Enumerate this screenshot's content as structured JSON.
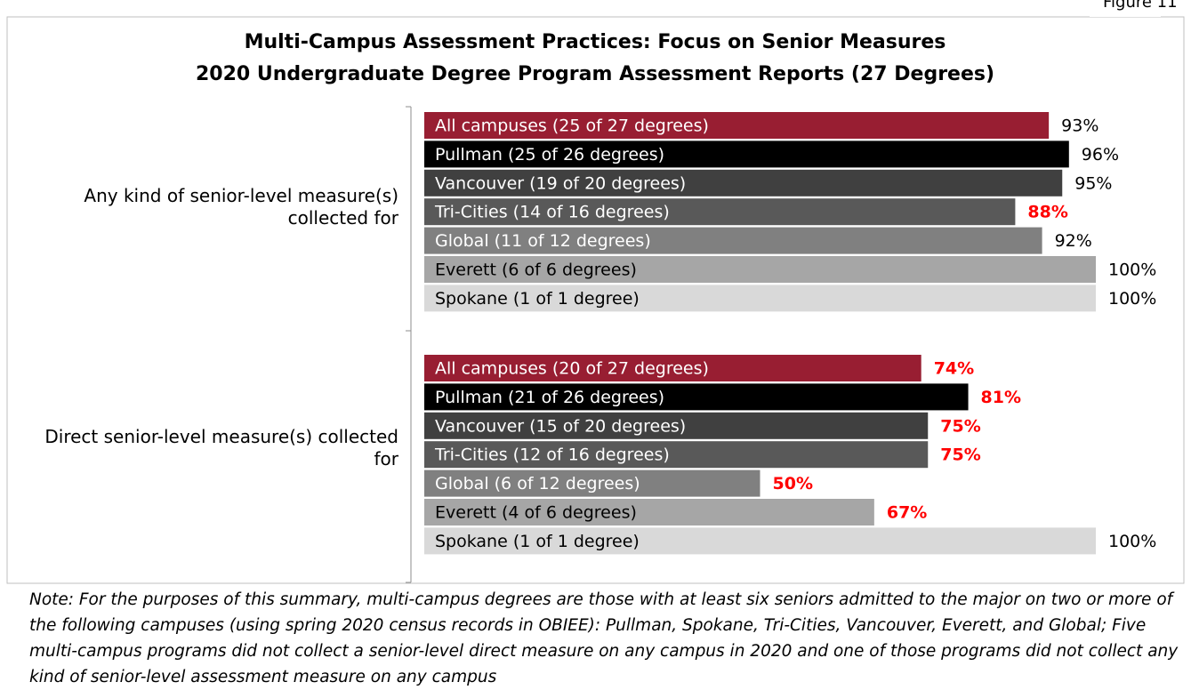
{
  "figure_label": "Figure 11",
  "chart_data": {
    "type": "bar",
    "orientation": "horizontal",
    "title": "Multi-Campus Assessment Practices: Focus on Senior Measures",
    "subtitle": "2020 Undergraduate Degree Program Assessment Reports (27 Degrees)",
    "categories": [
      "Any kind of senior-level measure(s) collected for",
      "Direct senior-level measure(s) collected for"
    ],
    "xlim": [
      0,
      100
    ],
    "series": [
      {
        "bar_labels": [
          "All campuses (25 of 27 degrees)",
          "All campuses (20 of 27 degrees)"
        ],
        "color": "#981e32",
        "text_color": "#ffffff",
        "values": [
          93,
          74
        ],
        "value_labels": [
          "93%",
          "74%"
        ],
        "value_label_colors": [
          "#000000",
          "#ff0000"
        ]
      },
      {
        "bar_labels": [
          "Pullman (25 of 26 degrees)",
          "Pullman (21 of 26 degrees)"
        ],
        "color": "#000000",
        "text_color": "#ffffff",
        "values": [
          96,
          81
        ],
        "value_labels": [
          "96%",
          "81%"
        ],
        "value_label_colors": [
          "#000000",
          "#ff0000"
        ]
      },
      {
        "bar_labels": [
          "Vancouver (19 of 20 degrees)",
          "Vancouver (15 of 20 degrees)"
        ],
        "color": "#404040",
        "text_color": "#ffffff",
        "values": [
          95,
          75
        ],
        "value_labels": [
          "95%",
          "75%"
        ],
        "value_label_colors": [
          "#000000",
          "#ff0000"
        ]
      },
      {
        "bar_labels": [
          "Tri-Cities (14 of 16 degrees)",
          "Tri-Cities (12 of 16 degrees)"
        ],
        "color": "#595959",
        "text_color": "#ffffff",
        "values": [
          88,
          75
        ],
        "value_labels": [
          "88%",
          "75%"
        ],
        "value_label_colors": [
          "#ff0000",
          "#ff0000"
        ]
      },
      {
        "bar_labels": [
          "Global (11 of 12 degrees)",
          "Global (6 of 12 degrees)"
        ],
        "color": "#808080",
        "text_color": "#ffffff",
        "values": [
          92,
          50
        ],
        "value_labels": [
          "92%",
          "50%"
        ],
        "value_label_colors": [
          "#000000",
          "#ff0000"
        ]
      },
      {
        "bar_labels": [
          "Everett (6 of 6 degrees)",
          "Everett (4 of 6 degrees)"
        ],
        "color": "#a6a6a6",
        "text_color": "#000000",
        "values": [
          100,
          67
        ],
        "value_labels": [
          "100%",
          "67%"
        ],
        "value_label_colors": [
          "#000000",
          "#ff0000"
        ]
      },
      {
        "bar_labels": [
          "Spokane (1 of 1 degree)",
          "Spokane (1 of 1 degree)"
        ],
        "color": "#d9d9d9",
        "text_color": "#000000",
        "values": [
          100,
          100
        ],
        "value_labels": [
          "100%",
          "100%"
        ],
        "value_label_colors": [
          "#000000",
          "#000000"
        ]
      }
    ],
    "note": "Note: For the purposes of this summary, multi-campus degrees are those with at least six seniors admitted to the major on two or more of the following campuses (using spring 2020 census records in OBIEE): Pullman, Spokane, Tri-Cities, Vancouver, Everett, and Global; Five multi-campus programs did not collect a senior-level direct measure on any campus in 2020 and one of those programs did not collect any kind of senior-level assessment measure on any campus"
  }
}
